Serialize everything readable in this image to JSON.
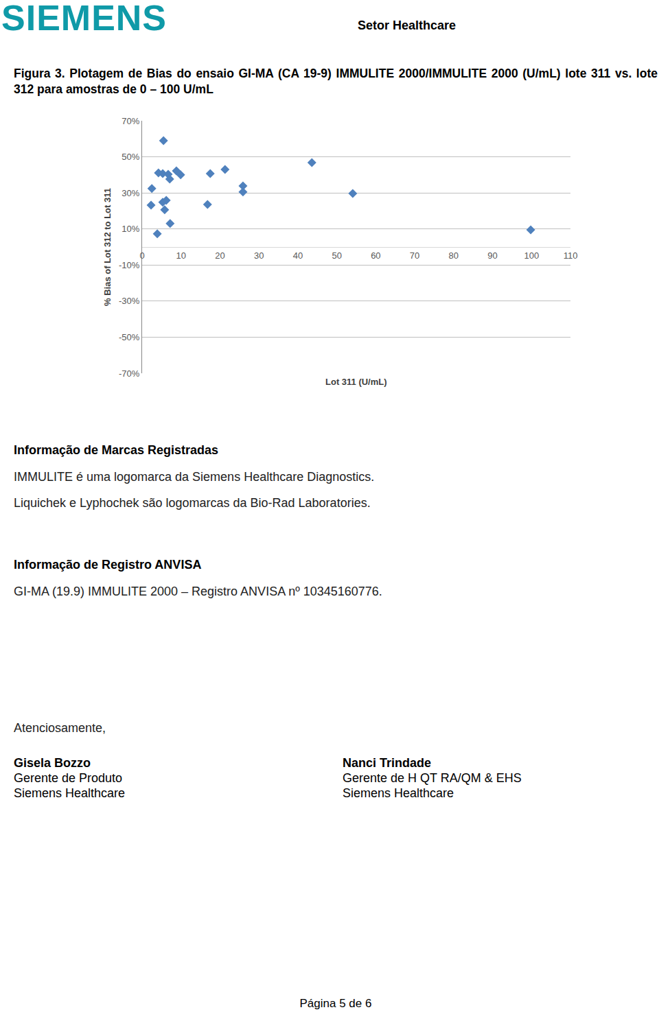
{
  "header": {
    "logo": "SIEMENS",
    "sector": "Setor Healthcare"
  },
  "figure_caption": "Figura 3. Plotagem de Bias do ensaio GI-MA (CA 19-9) IMMULITE 2000/IMMULITE 2000 (U/mL) lote 311 vs. lote 312 para amostras de 0 – 100 U/mL",
  "chart_data": {
    "type": "scatter",
    "x_label": "Lot 311 (U/mL)",
    "y_label": "% Bias of Lot 312 to Lot 311",
    "x": [
      5.5,
      2.5,
      2.3,
      3.9,
      4.2,
      5.3,
      6.7,
      7.1,
      8.8,
      9.9,
      5.3,
      6.2,
      5.8,
      7.2,
      16.8,
      17.5,
      21.3,
      25.9,
      25.9,
      43.6,
      54.1,
      99.8
    ],
    "values": [
      59,
      32.4,
      23.2,
      7.3,
      41.1,
      40.7,
      40.3,
      37.7,
      42.2,
      40,
      24.8,
      25.9,
      20.6,
      13,
      23.6,
      40.7,
      43,
      33.9,
      30.5,
      46.8,
      29.7,
      9.5
    ],
    "color": "#4f81bd",
    "marker": "diamond",
    "xlim": [
      0,
      110
    ],
    "xticks": [
      0,
      10,
      20,
      30,
      40,
      50,
      60,
      70,
      80,
      90,
      100,
      110
    ],
    "ylim": [
      -70,
      70
    ],
    "yticks": [
      {
        "value": 70,
        "label": "70%"
      },
      {
        "value": 50,
        "label": "50%"
      },
      {
        "value": 30,
        "label": "30%"
      },
      {
        "value": 10,
        "label": "10%"
      },
      {
        "value": -10,
        "label": "-10%"
      },
      {
        "value": -30,
        "label": "-30%"
      },
      {
        "value": -50,
        "label": "-50%"
      },
      {
        "value": -70,
        "label": "-70%"
      }
    ],
    "grid": true
  },
  "sections": [
    {
      "heading": "Informação de Marcas Registradas",
      "paragraphs": [
        "IMMULITE é uma logomarca da Siemens Healthcare Diagnostics.",
        "Liquichek e Lyphochek são logomarcas da Bio-Rad Laboratories."
      ]
    },
    {
      "heading": "Informação de Registro ANVISA",
      "paragraphs": [
        "GI-MA (19.9) IMMULITE 2000 – Registro ANVISA nº 10345160776."
      ]
    }
  ],
  "closing": "Atenciosamente,",
  "signatures": [
    {
      "name": "Gisela Bozzo",
      "lines": [
        "Gerente de Produto",
        "Siemens Healthcare"
      ]
    },
    {
      "name": "Nanci Trindade",
      "lines": [
        "Gerente de H QT RA/QM & EHS",
        "Siemens Healthcare"
      ]
    }
  ],
  "footer": "Página 5 de 6"
}
